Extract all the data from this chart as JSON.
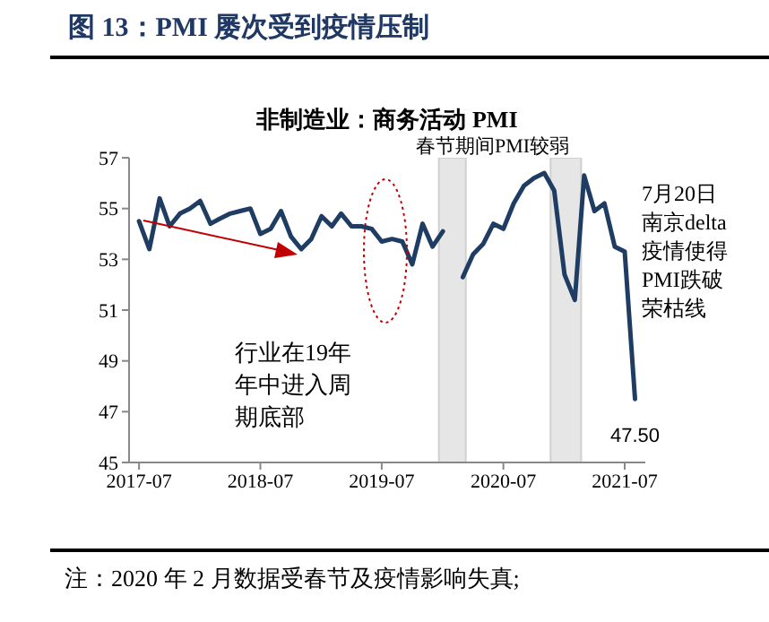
{
  "chart_data": {
    "type": "line",
    "title": "图 13：PMI 屡次受到疫情压制",
    "subtitle": "非制造业：商务活动 PMI",
    "x": [
      "2017-07",
      "2017-08",
      "2017-09",
      "2017-10",
      "2017-11",
      "2017-12",
      "2018-01",
      "2018-02",
      "2018-03",
      "2018-04",
      "2018-05",
      "2018-06",
      "2018-07",
      "2018-08",
      "2018-09",
      "2018-10",
      "2018-11",
      "2018-12",
      "2019-01",
      "2019-02",
      "2019-03",
      "2019-04",
      "2019-05",
      "2019-06",
      "2019-07",
      "2019-08",
      "2019-09",
      "2019-10",
      "2019-11",
      "2019-12",
      "2020-01",
      "2020-02",
      "2020-03",
      "2020-04",
      "2020-05",
      "2020-06",
      "2020-07",
      "2020-08",
      "2020-09",
      "2020-10",
      "2020-11",
      "2020-12",
      "2021-01",
      "2021-02",
      "2021-03",
      "2021-04",
      "2021-05",
      "2021-06",
      "2021-07",
      "2021-08"
    ],
    "series": [
      {
        "color": "#1f3d63",
        "values": [
          54.5,
          53.4,
          55.4,
          54.3,
          54.8,
          55.0,
          55.3,
          54.4,
          54.6,
          54.8,
          54.9,
          55.0,
          54.0,
          54.2,
          54.9,
          53.9,
          53.4,
          53.8,
          54.7,
          54.3,
          54.8,
          54.3,
          54.3,
          54.2,
          53.7,
          53.8,
          53.7,
          52.8,
          54.4,
          53.5,
          54.1,
          null,
          52.3,
          53.2,
          53.6,
          54.4,
          54.2,
          55.2,
          55.9,
          56.2,
          56.4,
          55.7,
          52.4,
          51.4,
          56.3,
          54.9,
          55.2,
          53.5,
          53.3,
          47.5
        ],
        "value_labels": [
          null,
          null,
          null,
          null,
          null,
          null,
          null,
          null,
          null,
          null,
          null,
          null,
          null,
          null,
          null,
          null,
          null,
          null,
          null,
          null,
          null,
          null,
          null,
          null,
          null,
          null,
          null,
          null,
          null,
          null,
          null,
          null,
          null,
          null,
          null,
          null,
          null,
          null,
          null,
          null,
          null,
          null,
          null,
          null,
          null,
          null,
          null,
          null,
          null,
          "47.50"
        ]
      }
    ],
    "xlim": [
      "2017-06",
      "2021-09"
    ],
    "xticks": [
      "2017-07",
      "2018-07",
      "2019-07",
      "2020-07",
      "2021-07"
    ],
    "ylim": [
      45,
      57
    ],
    "yticks": [
      45,
      47,
      49,
      51,
      53,
      55,
      57
    ],
    "marker": "none",
    "bands": [
      {
        "axis": "x",
        "from": "2019-12-20",
        "to": "2020-03-10",
        "color": "#e6e6e6"
      },
      {
        "axis": "x",
        "from": "2020-11-20",
        "to": "2021-02-20",
        "color": "#e6e6e6"
      }
    ],
    "annotations": [
      "春节期间PMI较弱",
      "行业在19年年中进入周期底部",
      "7月20日南京delta疫情使得PMI跌破荣枯线",
      "注：2020 年 2 月数据受春节及疫情影响失真;"
    ]
  }
}
